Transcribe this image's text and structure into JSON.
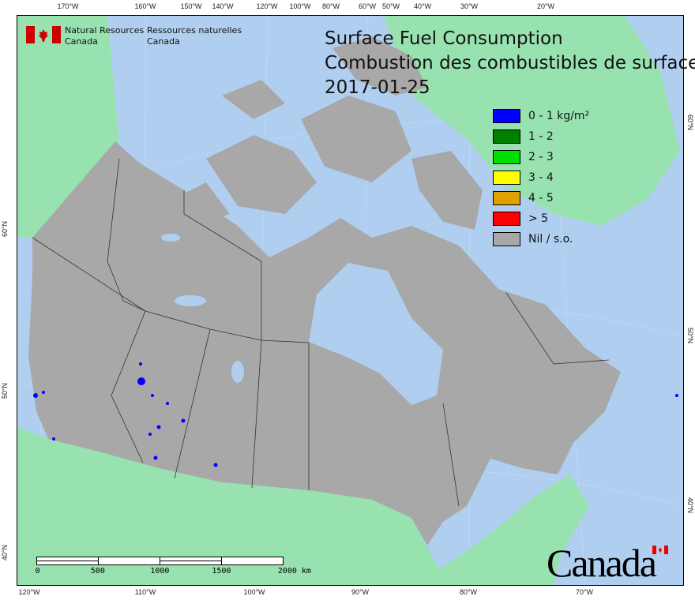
{
  "header": {
    "title_en": "Surface Fuel Consumption",
    "title_fr": "Combustion des combustibles de surface",
    "date": "2017-01-25"
  },
  "agency": {
    "en_line1": "Natural Resources",
    "en_line2": "Canada",
    "fr_line1": "Ressources naturelles",
    "fr_line2": "Canada"
  },
  "legend": [
    {
      "label": "0 - 1 kg/m²",
      "color": "#0000ff"
    },
    {
      "label": "1 - 2",
      "color": "#007f00"
    },
    {
      "label": "2 - 3",
      "color": "#00e000"
    },
    {
      "label": "3 - 4",
      "color": "#ffff00"
    },
    {
      "label": "4 - 5",
      "color": "#e0a000"
    },
    {
      "label": "> 5",
      "color": "#ff0000"
    },
    {
      "label": "Nil / s.o.",
      "color": "#a8a8a8"
    }
  ],
  "graticule": {
    "top": [
      "170°W",
      "160°W",
      "150°W",
      "140°W",
      "120°W",
      "100°W",
      "80°W",
      "60°W",
      "50°W",
      "40°W",
      "30°W",
      "20°W"
    ],
    "bottom": [
      "120°W",
      "110°W",
      "100°W",
      "90°W",
      "80°W",
      "70°W"
    ],
    "left": [
      "60°N",
      "50°N",
      "40°N"
    ],
    "right": [
      "60°N",
      "50°N",
      "40°N"
    ]
  },
  "scale_bar": {
    "labels": [
      "0",
      "500",
      "1000",
      "1500",
      "2000 km"
    ]
  },
  "wordmark": "Canada",
  "colors": {
    "ocean": "#b0cff0",
    "foreign_land": "#98e2b0",
    "canada_nil": "#a8a8a8",
    "fire": "#0000ff"
  }
}
